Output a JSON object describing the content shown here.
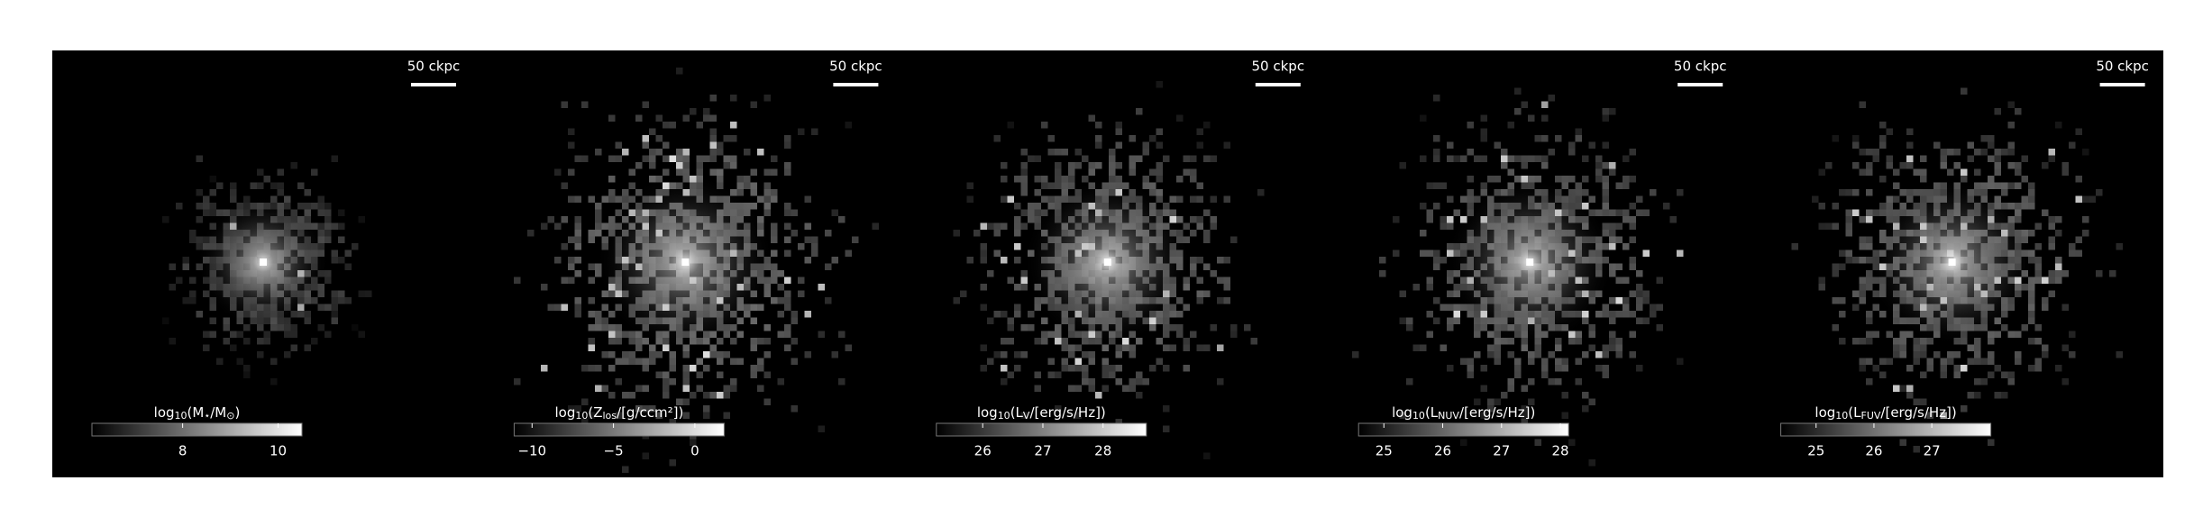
{
  "chart_data": [
    {
      "type": "image",
      "scalebar": "50 ckpc",
      "colorbar_label": [
        "log",
        "10",
        "(M",
        "⋆",
        "/M",
        "⊙",
        ")"
      ],
      "clim": [
        6.1,
        10.5
      ],
      "cticks": [
        8,
        10
      ],
      "spread": 0.35
    },
    {
      "type": "image",
      "scalebar": "50 ckpc",
      "colorbar_label": [
        "log",
        "10",
        "(Z",
        "los",
        "/[g/ccm²])"
      ],
      "clim": [
        -11.1,
        1.8
      ],
      "cticks": [
        {
          "value": -10,
          "label": "−10"
        },
        {
          "value": -5,
          "label": "−5"
        },
        0
      ],
      "spread": 1.0
    },
    {
      "type": "image",
      "scalebar": "50 ckpc",
      "colorbar_label": [
        "log",
        "10",
        "(L",
        "V",
        "/[erg/s/Hz])"
      ],
      "clim": [
        25.23,
        28.72
      ],
      "cticks": [
        26,
        27,
        28
      ],
      "spread": 0.85
    },
    {
      "type": "image",
      "scalebar": "50 ckpc",
      "colorbar_label": [
        "log",
        "10",
        "(L",
        "NUV",
        "/[erg/s/Hz])"
      ],
      "clim": [
        24.57,
        28.14
      ],
      "cticks": [
        25,
        26,
        27,
        28
      ],
      "spread": 0.85
    },
    {
      "type": "image",
      "scalebar": "50 ckpc",
      "colorbar_label": [
        "log",
        "10",
        "(L",
        "FUV",
        "/[erg/s/Hz])"
      ],
      "clim": [
        24.39,
        28.02
      ],
      "cticks": [
        25,
        26,
        27
      ],
      "spread": 0.85
    }
  ]
}
